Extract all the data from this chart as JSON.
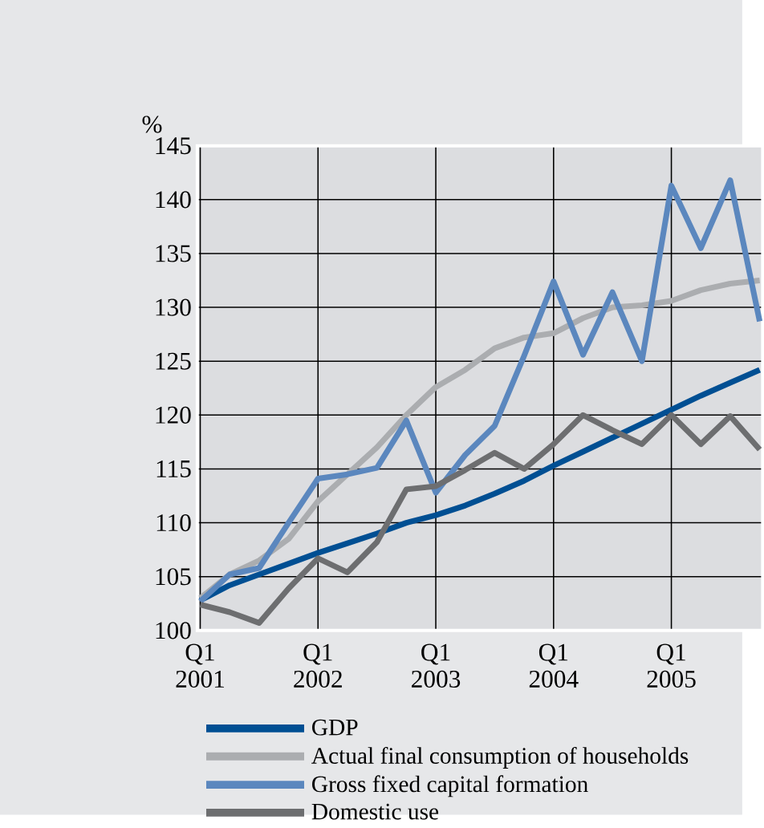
{
  "chart_data": {
    "type": "line",
    "ylabel": "%",
    "categories": [
      "Q1 2001",
      null,
      null,
      null,
      "Q1 2002",
      null,
      null,
      null,
      "Q1 2003",
      null,
      null,
      null,
      "Q1 2004",
      null,
      null,
      null,
      "Q1 2005",
      null,
      null,
      null
    ],
    "series": [
      {
        "name": "GDP",
        "color": "#004f93",
        "values": [
          102.8,
          104.2,
          105.2,
          106.2,
          107.2,
          108.1,
          109.0,
          110.0,
          110.7,
          111.6,
          112.7,
          113.9,
          115.3,
          116.6,
          117.9,
          119.2,
          120.5,
          121.8,
          123.0,
          124.2
        ]
      },
      {
        "name": "Actual final consumption of households",
        "color": "#abadb0",
        "values": [
          103.0,
          105.2,
          106.5,
          108.5,
          112.0,
          114.5,
          117.0,
          120.0,
          122.6,
          124.2,
          126.2,
          127.2,
          127.6,
          129.0,
          130.0,
          130.2,
          130.6,
          131.6,
          132.2,
          132.5
        ]
      },
      {
        "name": "Gross fixed capital formation",
        "color": "#5b87be",
        "values": [
          102.7,
          105.2,
          105.8,
          110.0,
          114.1,
          114.5,
          115.1,
          119.5,
          112.8,
          116.3,
          119.0,
          125.5,
          132.4,
          125.6,
          131.4,
          125.0,
          141.3,
          135.5,
          141.8,
          128.7
        ]
      },
      {
        "name": "Domestic use",
        "color": "#6d6e70",
        "values": [
          102.4,
          101.7,
          100.7,
          103.9,
          106.7,
          105.4,
          108.2,
          113.1,
          113.4,
          114.9,
          116.5,
          115.0,
          117.3,
          120.0,
          118.6,
          117.3,
          120.0,
          117.3,
          119.9,
          116.8
        ]
      }
    ],
    "ylim": [
      100,
      145
    ],
    "yticks": [
      100,
      105,
      110,
      115,
      120,
      125,
      130,
      135,
      140,
      145
    ],
    "grid": true,
    "legend": "bottom",
    "line_style": "solid"
  }
}
